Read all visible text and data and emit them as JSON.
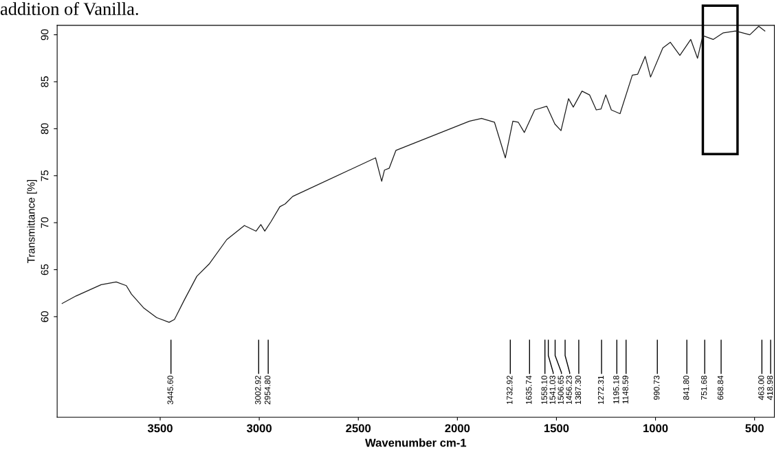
{
  "chart_data": {
    "type": "line",
    "xlabel": "Wavenumber cm-1",
    "ylabel": "Transmittance [%]",
    "xlim": [
      4020,
      400
    ],
    "xticks": [
      3500,
      3000,
      2500,
      2000,
      1500,
      1000,
      500
    ],
    "ylim": [
      49.3,
      91
    ],
    "yticks": [
      60,
      65,
      70,
      75,
      80,
      85,
      90
    ],
    "grid": false,
    "marker": "none",
    "line_style": "solid",
    "series": [
      {
        "color": "#1a1a1a",
        "x": [
          3995,
          3925,
          3798,
          3722,
          3671,
          3645,
          3582,
          3518,
          3455,
          3428,
          3380,
          3315,
          3253,
          3164,
          3075,
          3016,
          2992,
          2972,
          2941,
          2896,
          2869,
          2831,
          2413,
          2382,
          2368,
          2344,
          2310,
          1939,
          1878,
          1813,
          1758,
          1720,
          1693,
          1662,
          1610,
          1549,
          1508,
          1477,
          1439,
          1415,
          1371,
          1333,
          1299,
          1275,
          1251,
          1223,
          1179,
          1117,
          1090,
          1052,
          1025,
          963,
          925,
          877,
          822,
          788,
          761,
          709,
          658,
          596,
          524,
          479,
          448
        ],
        "values": [
          61.4,
          62.2,
          63.4,
          63.7,
          63.3,
          62.4,
          60.9,
          59.9,
          59.4,
          59.7,
          61.7,
          64.3,
          65.6,
          68.2,
          69.7,
          69.1,
          69.8,
          69.1,
          70.1,
          71.7,
          72.0,
          72.8,
          76.9,
          74.4,
          75.6,
          75.8,
          77.7,
          80.8,
          81.1,
          80.7,
          76.9,
          80.8,
          80.7,
          79.6,
          82.0,
          82.4,
          80.5,
          79.8,
          83.2,
          82.3,
          84.0,
          83.6,
          82.0,
          82.1,
          83.6,
          82.0,
          81.6,
          85.7,
          85.8,
          87.7,
          85.5,
          88.6,
          89.2,
          87.8,
          89.5,
          87.5,
          89.9,
          89.5,
          90.2,
          90.4,
          90.0,
          90.9,
          90.4
        ]
      }
    ],
    "annotations": [
      "addition of Vanilla.",
      "3445.60",
      "3002.92",
      "2954.80",
      "1732.92",
      "1635.74",
      "1558.10",
      "1541.03",
      "1506.65",
      "1456.23",
      "1387.30",
      "1272.31",
      "1195.18",
      "1148.59",
      "990.73",
      "841.80",
      "751.68",
      "668.84",
      "463.00",
      "418.98"
    ]
  }
}
